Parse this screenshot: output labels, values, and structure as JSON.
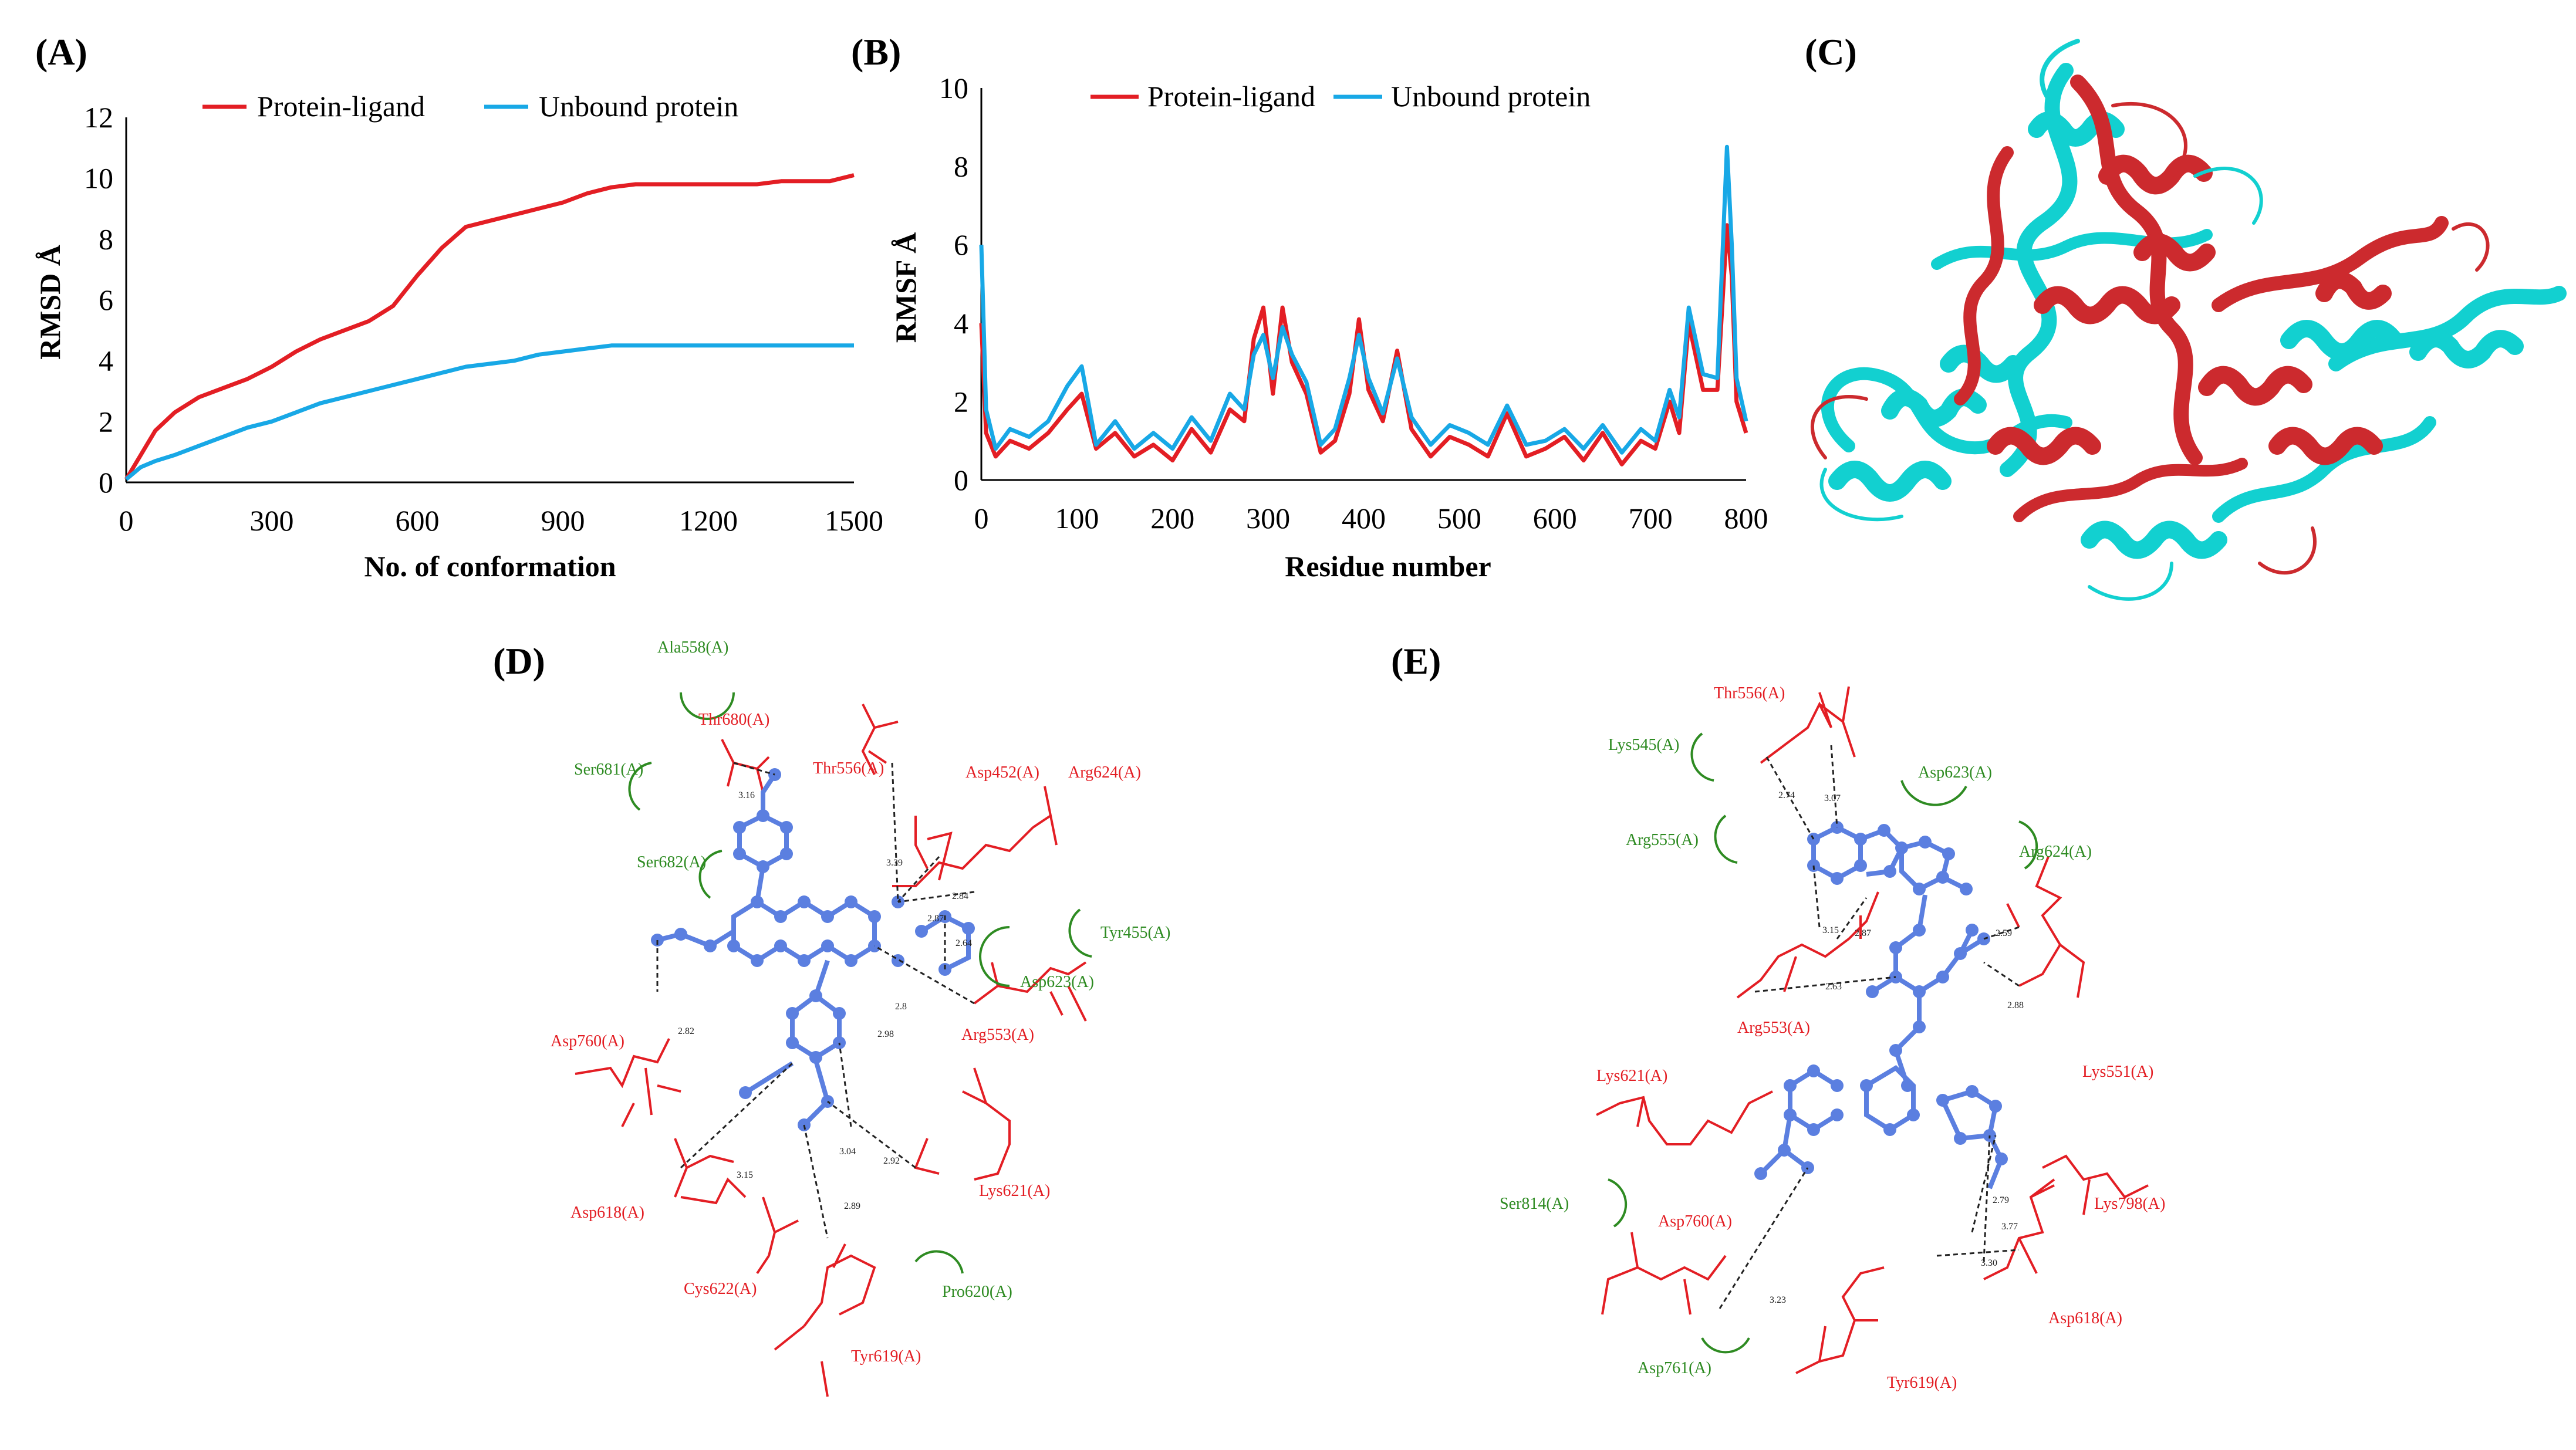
{
  "colors": {
    "protein_ligand": "#e31e24",
    "unbound": "#18a8e6",
    "residue_red": "#e31e24",
    "residue_green": "#2e8b22",
    "ligand": "#5b7fe0",
    "cartoon_red": "#cc2a2e",
    "cartoon_cyan": "#12d0d0"
  },
  "panels": {
    "A": "(A)",
    "B": "(B)",
    "C": "(C)",
    "D": "(D)",
    "E": "(E)"
  },
  "chart_data": [
    {
      "id": "A",
      "type": "line",
      "title": "",
      "xlabel": "No. of conformation",
      "ylabel": "RMSD Å",
      "xlim": [
        0,
        1500
      ],
      "ylim": [
        0,
        12
      ],
      "xticks": [
        "0",
        "300",
        "600",
        "900",
        "1200",
        "1500"
      ],
      "yticks": [
        "0",
        "2",
        "4",
        "6",
        "8",
        "10",
        "12"
      ],
      "legend": [
        "Protein-ligand",
        "Unbound protein"
      ],
      "x": [
        0,
        30,
        60,
        100,
        150,
        200,
        250,
        300,
        350,
        400,
        450,
        500,
        550,
        600,
        650,
        700,
        750,
        800,
        850,
        900,
        950,
        1000,
        1050,
        1100,
        1150,
        1200,
        1250,
        1300,
        1350,
        1400,
        1450,
        1500
      ],
      "series": [
        {
          "name": "Protein-ligand",
          "values": [
            0.1,
            0.9,
            1.7,
            2.3,
            2.8,
            3.1,
            3.4,
            3.8,
            4.3,
            4.7,
            5.0,
            5.3,
            5.8,
            6.8,
            7.7,
            8.4,
            8.6,
            8.8,
            9.0,
            9.2,
            9.5,
            9.7,
            9.8,
            9.8,
            9.8,
            9.8,
            9.8,
            9.8,
            9.9,
            9.9,
            9.9,
            10.1
          ]
        },
        {
          "name": "Unbound protein",
          "values": [
            0.1,
            0.5,
            0.7,
            0.9,
            1.2,
            1.5,
            1.8,
            2.0,
            2.3,
            2.6,
            2.8,
            3.0,
            3.2,
            3.4,
            3.6,
            3.8,
            3.9,
            4.0,
            4.2,
            4.3,
            4.4,
            4.5,
            4.5,
            4.5,
            4.5,
            4.5,
            4.5,
            4.5,
            4.5,
            4.5,
            4.5,
            4.5
          ]
        }
      ]
    },
    {
      "id": "B",
      "type": "line",
      "title": "",
      "xlabel": "Residue number",
      "ylabel": "RMSF Å",
      "xlim": [
        0,
        800
      ],
      "ylim": [
        0,
        10
      ],
      "xticks": [
        "0",
        "100",
        "200",
        "300",
        "400",
        "500",
        "600",
        "700",
        "800"
      ],
      "yticks": [
        "0",
        "2",
        "4",
        "6",
        "8",
        "10"
      ],
      "legend": [
        "Protein-ligand",
        "Unbound protein"
      ],
      "x": [
        0,
        5,
        15,
        30,
        50,
        70,
        90,
        105,
        120,
        140,
        160,
        180,
        200,
        220,
        240,
        260,
        275,
        285,
        295,
        305,
        315,
        325,
        340,
        355,
        370,
        385,
        395,
        405,
        420,
        435,
        450,
        470,
        490,
        510,
        530,
        550,
        570,
        590,
        610,
        630,
        650,
        670,
        690,
        705,
        720,
        730,
        740,
        755,
        770,
        780,
        785,
        790,
        800
      ],
      "series": [
        {
          "name": "Protein-ligand",
          "values": [
            4.0,
            1.2,
            0.6,
            1.0,
            0.8,
            1.2,
            1.8,
            2.2,
            0.8,
            1.2,
            0.6,
            0.9,
            0.5,
            1.3,
            0.7,
            1.8,
            1.5,
            3.6,
            4.4,
            2.2,
            4.4,
            3.0,
            2.2,
            0.7,
            1.0,
            2.2,
            4.1,
            2.3,
            1.5,
            3.3,
            1.3,
            0.6,
            1.1,
            0.9,
            0.6,
            1.7,
            0.6,
            0.8,
            1.1,
            0.5,
            1.2,
            0.4,
            1.0,
            0.8,
            2.0,
            1.2,
            4.0,
            2.3,
            2.3,
            6.5,
            5.2,
            2.0,
            1.2
          ]
        },
        {
          "name": "Unbound protein",
          "values": [
            6.0,
            1.8,
            0.8,
            1.3,
            1.1,
            1.5,
            2.4,
            2.9,
            0.9,
            1.5,
            0.8,
            1.2,
            0.8,
            1.6,
            1.0,
            2.2,
            1.8,
            3.2,
            3.7,
            2.6,
            3.9,
            3.2,
            2.5,
            0.9,
            1.3,
            2.6,
            3.7,
            2.6,
            1.7,
            3.1,
            1.6,
            0.9,
            1.4,
            1.2,
            0.9,
            1.9,
            0.9,
            1.0,
            1.3,
            0.8,
            1.4,
            0.7,
            1.3,
            1.0,
            2.3,
            1.6,
            4.4,
            2.7,
            2.6,
            8.5,
            6.0,
            2.6,
            1.5
          ]
        }
      ]
    }
  ],
  "panel_D": {
    "residues_red": [
      "Thr680(A)",
      "Thr556(A)",
      "Asp452(A)",
      "Arg624(A)",
      "Asp760(A)",
      "Arg553(A)",
      "Asp618(A)",
      "Lys621(A)",
      "Cys622(A)",
      "Tyr619(A)"
    ],
    "residues_green": [
      "Ala558(A)",
      "Ser681(A)",
      "Ser682(A)",
      "Tyr455(A)",
      "Asp623(A)",
      "Pro620(A)"
    ],
    "distances": [
      "3.16",
      "3.39",
      "2.87",
      "2.84",
      "2.64",
      "2.8",
      "2.98",
      "2.82",
      "3.15",
      "2.92",
      "3.04",
      "2.89"
    ]
  },
  "panel_E": {
    "residues_red": [
      "Thr556(A)",
      "Arg553(A)",
      "Lys551(A)",
      "Lys621(A)",
      "Lys798(A)",
      "Asp760(A)",
      "Asp618(A)",
      "Tyr619(A)"
    ],
    "residues_green": [
      "Lys545(A)",
      "Asp623(A)",
      "Arg555(A)",
      "Arg624(A)",
      "Ser814(A)",
      "Asp761(A)"
    ],
    "distances": [
      "2.74",
      "3.07",
      "3.15",
      "2.87",
      "2.59",
      "2.63",
      "2.88",
      "2.79",
      "3.30",
      "3.77",
      "3.23"
    ]
  }
}
